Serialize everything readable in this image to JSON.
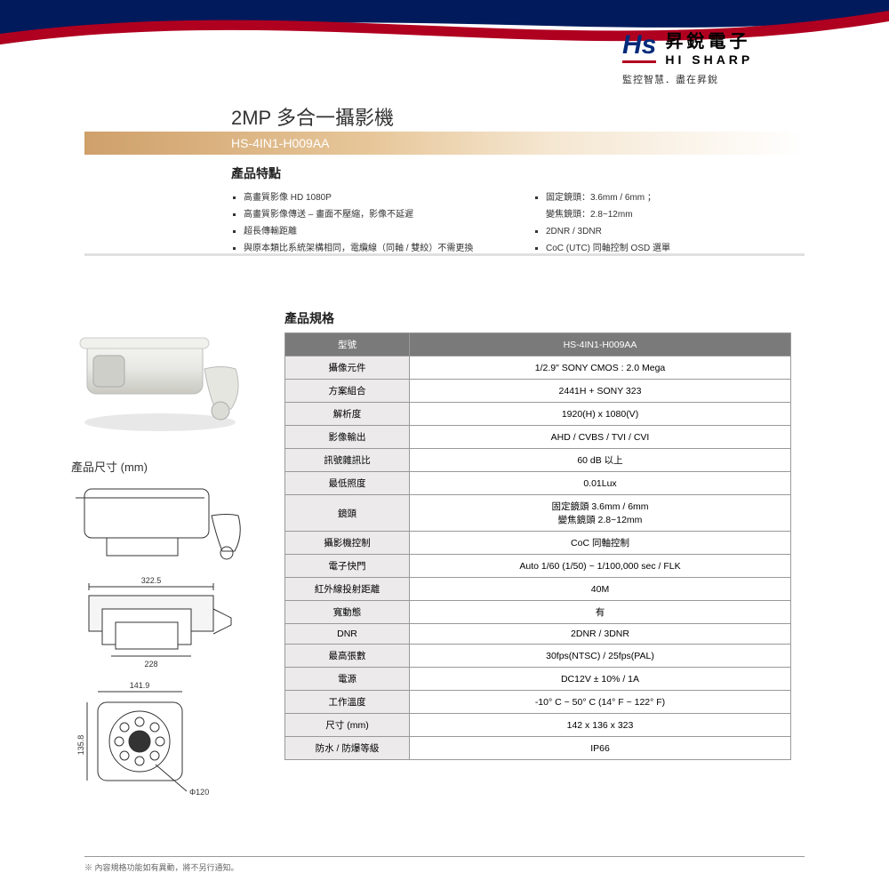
{
  "brand": {
    "symbol": "Hs",
    "name_cn": "昇銳電子",
    "name_en": "HI SHARP",
    "tagline": "監控智慧．盡在昇銳"
  },
  "colors": {
    "navy": "#001a5c",
    "red": "#b00020",
    "band_start": "#cfa06a",
    "spec_header": "#7a7a7a",
    "spec_label_bg": "#eceaea"
  },
  "title": "2MP 多合一攝影機",
  "model": "HS-4IN1-H009AA",
  "features_title": "產品特點",
  "features_left": [
    "高畫質影像 HD 1080P",
    "高畫質影像傳送 – 畫面不壓縮，影像不延遲",
    "超長傳輸距離",
    "與原本類比系統架構相同，電纜線（同軸 / 雙絞）不需更換"
  ],
  "features_right": [
    "固定鏡頭：3.6mm / 6mm ；\n變焦鏡頭：2.8~12mm",
    "2DNR / 3DNR",
    "CoC (UTC) 同軸控制 OSD 選單"
  ],
  "dimensions_title": "產品尺寸 (mm)",
  "dimensions": {
    "top_length": "322.5",
    "mid_width": "228",
    "front_w": "141.9",
    "front_h": "135.8",
    "front_dia": "Φ120"
  },
  "specs_title": "產品規格",
  "specs_header": {
    "label": "型號",
    "value": "HS-4IN1-H009AA"
  },
  "specs": [
    {
      "label": "攝像元件",
      "value": "1/2.9\"   SONY CMOS : 2.0 Mega"
    },
    {
      "label": "方案組合",
      "value": "2441H + SONY 323"
    },
    {
      "label": "解析度",
      "value": "1920(H) x 1080(V)"
    },
    {
      "label": "影像輸出",
      "value": "AHD / CVBS / TVI / CVI"
    },
    {
      "label": "訊號雜訊比",
      "value": "60 dB 以上"
    },
    {
      "label": "最低照度",
      "value": "0.01Lux"
    },
    {
      "label": "鏡頭",
      "value": "固定鏡頭 3.6mm / 6mm\n變焦鏡頭 2.8~12mm"
    },
    {
      "label": "攝影機控制",
      "value": "CoC 同軸控制"
    },
    {
      "label": "電子快門",
      "value": "Auto 1/60 (1/50) ~ 1/100,000 sec / FLK"
    },
    {
      "label": "紅外線投射距離",
      "value": "40M"
    },
    {
      "label": "寬動態",
      "value": "有"
    },
    {
      "label": "DNR",
      "value": "2DNR / 3DNR"
    },
    {
      "label": "最高張數",
      "value": "30fps(NTSC) / 25fps(PAL)"
    },
    {
      "label": "電源",
      "value": "DC12V ± 10% / 1A"
    },
    {
      "label": "工作溫度",
      "value": "-10° C ~ 50° C (14° F ~ 122° F)"
    },
    {
      "label": "尺寸 (mm)",
      "value": "142 x 136 x 323"
    },
    {
      "label": "防水 / 防爆等級",
      "value": "IP66"
    }
  ],
  "footnote": "※ 內容規格功能如有異動，將不另行通知。"
}
